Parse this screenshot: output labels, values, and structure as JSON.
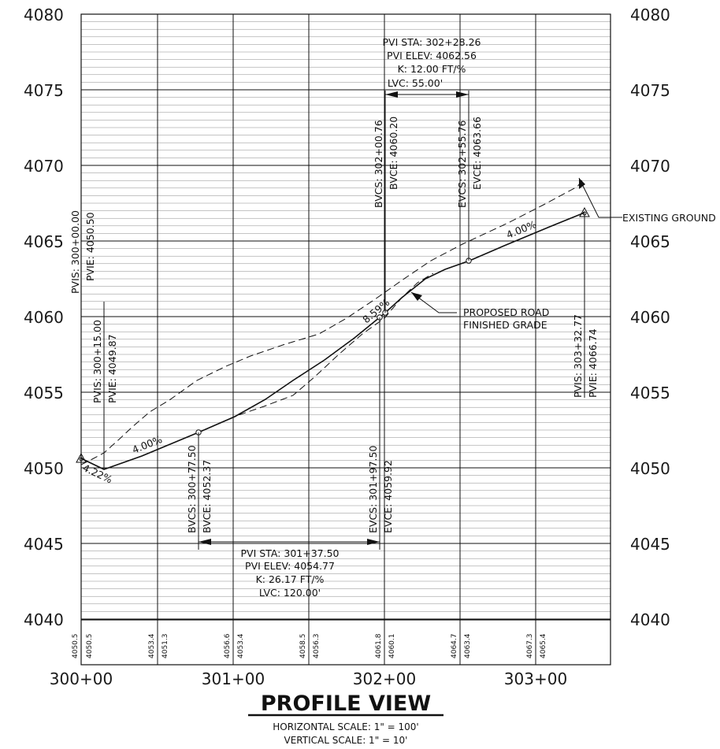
{
  "title": "PROFILE VIEW",
  "scales": {
    "horizontal": "HORIZONTAL SCALE: 1\" = 100'",
    "vertical": "VERTICAL SCALE: 1\" = 10'"
  },
  "y_axis": {
    "left_labels": [
      "4080",
      "4075",
      "4070",
      "4065",
      "4060",
      "4055",
      "4050",
      "4045",
      "4040"
    ],
    "right_labels": [
      "4080",
      "4075",
      "4070",
      "4065",
      "4060",
      "4055",
      "4050",
      "4045",
      "4040"
    ]
  },
  "x_axis": {
    "labels": [
      "300+00",
      "301+00",
      "302+00",
      "303+00"
    ]
  },
  "bottom_elevations": {
    "existing": [
      "4050.5",
      "4053.4",
      "4056.6",
      "4058.5",
      "4061.8",
      "4064.7",
      "4067.3"
    ],
    "proposed": [
      "4050.5",
      "4051.3",
      "4053.4",
      "4056.3",
      "4060.1",
      "4063.4",
      "4065.4"
    ]
  },
  "callouts": {
    "existing_ground": "EXISTING GROUND",
    "proposed_road_1": "PROPOSED ROAD",
    "proposed_road_2": "FINISHED GRADE"
  },
  "grades": {
    "g1": "4.22%",
    "g2": "4.00%",
    "g3": "8.59%",
    "g4": "4.00%"
  },
  "pvi_points": {
    "start_sta": "PVIS: 300+00.00",
    "start_elev": "PVIE: 4050.50",
    "pvi1_sta": "PVIS: 300+15.00",
    "pvi1_elev": "PVIE: 4049.87",
    "end_sta": "PVIS: 303+32.77",
    "end_elev": "PVIE: 4066.74"
  },
  "curve_sag": {
    "bvcs": "BVCS: 300+77.50",
    "bvce": "BVCE: 4052.37",
    "evcs": "EVCS: 301+97.50",
    "evce": "EVCE: 4059.92",
    "pvi_sta": "PVI STA: 301+37.50",
    "pvi_elev": "PVI ELEV: 4054.77",
    "k": "K: 26.17 FT/%",
    "lvc": "LVC: 120.00'"
  },
  "curve_crest": {
    "bvcs": "BVCS: 302+00.76",
    "bvce": "BVCE: 4060.20",
    "evcs": "EVCS: 302+55.76",
    "evce": "EVCE: 4063.66",
    "pvi_sta": "PVI STA: 302+28.26",
    "pvi_elev": "PVI ELEV: 4062.56",
    "k": "K: 12.00 FT/%",
    "lvc": "LVC: 55.00'"
  },
  "colors": {
    "ink": "#111111",
    "minor_grid": "#8a8a8a",
    "background": "#ffffff"
  }
}
